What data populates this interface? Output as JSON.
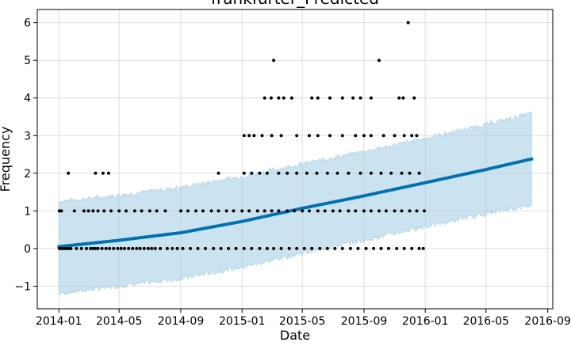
{
  "chart_data": {
    "type": "scatter",
    "title": "frankfurter_Predicted",
    "xlabel": "Date",
    "ylabel": "Frequency",
    "xlim": [
      "2013-11-19",
      "2016-09-11"
    ],
    "ylim": [
      -1.6,
      6.35
    ],
    "grid": true,
    "colors": {
      "observed": "#000000",
      "forecast": "#0072b2",
      "interval": "#a9cfe6"
    },
    "x_ticks": [
      "2014-01",
      "2014-05",
      "2014-09",
      "2015-01",
      "2015-05",
      "2015-09",
      "2016-01",
      "2016-05",
      "2016-09"
    ],
    "y_ticks": [
      -1,
      0,
      1,
      2,
      3,
      4,
      5,
      6
    ],
    "forecast_range": [
      "2014-01-01",
      "2016-07-31"
    ],
    "series": [
      {
        "role": "forecast",
        "x": [
          "2014-01-01",
          "2014-05-01",
          "2014-09-01",
          "2015-01-01",
          "2015-05-01",
          "2015-09-01",
          "2016-01-01",
          "2016-05-01",
          "2016-07-31"
        ],
        "y": [
          0.05,
          0.22,
          0.42,
          0.72,
          1.07,
          1.4,
          1.75,
          2.1,
          2.38
        ]
      },
      {
        "role": "interval-upper",
        "x": [
          "2014-01-01",
          "2014-05-01",
          "2014-09-01",
          "2015-01-01",
          "2015-05-01",
          "2015-09-01",
          "2016-01-01",
          "2016-05-01",
          "2016-07-31"
        ],
        "y": [
          1.25,
          1.42,
          1.63,
          1.92,
          2.25,
          2.58,
          2.93,
          3.3,
          3.6
        ]
      },
      {
        "role": "interval-lower",
        "x": [
          "2014-01-01",
          "2014-05-01",
          "2014-09-01",
          "2015-01-01",
          "2015-05-01",
          "2015-09-01",
          "2016-01-01",
          "2016-05-01",
          "2016-07-31"
        ],
        "y": [
          -1.2,
          -1.0,
          -0.8,
          -0.5,
          -0.12,
          0.22,
          0.58,
          0.92,
          1.15
        ]
      },
      {
        "role": "observed",
        "x": [
          "2014-01-02",
          "2014-01-05",
          "2014-01-08",
          "2014-01-12",
          "2014-01-15",
          "2014-01-20",
          "2014-01-25",
          "2014-02-05",
          "2014-02-15",
          "2014-02-25",
          "2014-03-05",
          "2014-03-10",
          "2014-03-15",
          "2014-03-20",
          "2014-03-28",
          "2014-04-05",
          "2014-04-12",
          "2014-04-20",
          "2014-04-28",
          "2014-05-05",
          "2014-05-12",
          "2014-05-20",
          "2014-05-28",
          "2014-06-05",
          "2014-06-12",
          "2014-06-20",
          "2014-06-28",
          "2014-07-05",
          "2014-07-12",
          "2014-07-22",
          "2014-08-05",
          "2014-08-15",
          "2014-08-25",
          "2014-09-05",
          "2014-09-20",
          "2014-10-05",
          "2014-10-20",
          "2014-11-05",
          "2014-11-20",
          "2014-12-05",
          "2014-12-20",
          "2015-01-05",
          "2015-01-20",
          "2015-02-05",
          "2015-02-20",
          "2015-03-05",
          "2015-03-20",
          "2015-04-05",
          "2015-04-20",
          "2015-05-05",
          "2015-05-20",
          "2015-06-05",
          "2015-06-20",
          "2015-07-05",
          "2015-07-20",
          "2015-08-05",
          "2015-08-20",
          "2015-09-05",
          "2015-09-20",
          "2015-10-05",
          "2015-10-20",
          "2015-11-05",
          "2015-11-20",
          "2015-12-05",
          "2015-12-20",
          "2015-12-28",
          "2014-01-02",
          "2014-01-06",
          "2014-02-01",
          "2014-02-20",
          "2014-03-01",
          "2014-03-10",
          "2014-03-20",
          "2014-04-01",
          "2014-04-15",
          "2014-05-01",
          "2014-05-15",
          "2014-06-01",
          "2014-06-15",
          "2014-07-01",
          "2014-07-15",
          "2014-08-01",
          "2014-09-01",
          "2014-09-15",
          "2014-10-01",
          "2014-10-15",
          "2014-11-01",
          "2014-11-15",
          "2014-12-01",
          "2014-12-15",
          "2015-01-01",
          "2015-01-15",
          "2015-02-01",
          "2015-02-15",
          "2015-03-01",
          "2015-03-15",
          "2015-04-01",
          "2015-04-15",
          "2015-05-01",
          "2015-05-15",
          "2015-06-01",
          "2015-06-15",
          "2015-07-01",
          "2015-07-15",
          "2015-08-01",
          "2015-08-15",
          "2015-09-01",
          "2015-09-15",
          "2015-10-01",
          "2015-10-15",
          "2015-11-01",
          "2015-11-15",
          "2015-12-01",
          "2015-12-15",
          "2015-12-30",
          "2014-01-20",
          "2014-03-15",
          "2014-03-30",
          "2014-04-10",
          "2014-11-15",
          "2015-01-05",
          "2015-01-20",
          "2015-02-05",
          "2015-02-20",
          "2015-03-15",
          "2015-04-01",
          "2015-04-20",
          "2015-05-10",
          "2015-05-30",
          "2015-06-20",
          "2015-07-10",
          "2015-08-01",
          "2015-08-25",
          "2015-09-15",
          "2015-10-05",
          "2015-10-25",
          "2015-11-15",
          "2015-12-01",
          "2015-12-20",
          "2015-01-05",
          "2015-01-15",
          "2015-01-25",
          "2015-02-10",
          "2015-03-01",
          "2015-03-20",
          "2015-04-20",
          "2015-05-15",
          "2015-06-01",
          "2015-06-25",
          "2015-07-20",
          "2015-08-15",
          "2015-09-01",
          "2015-09-15",
          "2015-10-10",
          "2015-11-01",
          "2015-11-20",
          "2015-12-05",
          "2015-12-15",
          "2015-02-15",
          "2015-02-28",
          "2015-03-15",
          "2015-03-25",
          "2015-04-10",
          "2015-05-20",
          "2015-06-01",
          "2015-06-25",
          "2015-07-20",
          "2015-08-10",
          "2015-08-25",
          "2015-09-15",
          "2015-11-10",
          "2015-11-18",
          "2015-12-10",
          "2015-03-05",
          "2015-10-01",
          "2015-11-28"
        ],
        "y": [
          0,
          0,
          0,
          0,
          0,
          0,
          0,
          0,
          0,
          0,
          0,
          0,
          0,
          0,
          0,
          0,
          0,
          0,
          0,
          0,
          0,
          0,
          0,
          0,
          0,
          0,
          0,
          0,
          0,
          0,
          0,
          0,
          0,
          0,
          0,
          0,
          0,
          0,
          0,
          0,
          0,
          0,
          0,
          0,
          0,
          0,
          0,
          0,
          0,
          0,
          0,
          0,
          0,
          0,
          0,
          0,
          0,
          0,
          0,
          0,
          0,
          0,
          0,
          0,
          0,
          0,
          1,
          1,
          1,
          1,
          1,
          1,
          1,
          1,
          1,
          1,
          1,
          1,
          1,
          1,
          1,
          1,
          1,
          1,
          1,
          1,
          1,
          1,
          1,
          1,
          1,
          1,
          1,
          1,
          1,
          1,
          1,
          1,
          1,
          1,
          1,
          1,
          1,
          1,
          1,
          1,
          1,
          1,
          1,
          1,
          1,
          1,
          1,
          1,
          1,
          2,
          2,
          2,
          2,
          2,
          2,
          2,
          2,
          2,
          2,
          2,
          2,
          2,
          2,
          2,
          2,
          2,
          2,
          2,
          2,
          2,
          2,
          2,
          2,
          3,
          3,
          3,
          3,
          3,
          3,
          3,
          3,
          3,
          3,
          3,
          3,
          3,
          3,
          3,
          3,
          3,
          3,
          3,
          4,
          4,
          4,
          4,
          4,
          4,
          4,
          4,
          4,
          4,
          4,
          4,
          4,
          4,
          4,
          5,
          5,
          6
        ]
      }
    ]
  }
}
